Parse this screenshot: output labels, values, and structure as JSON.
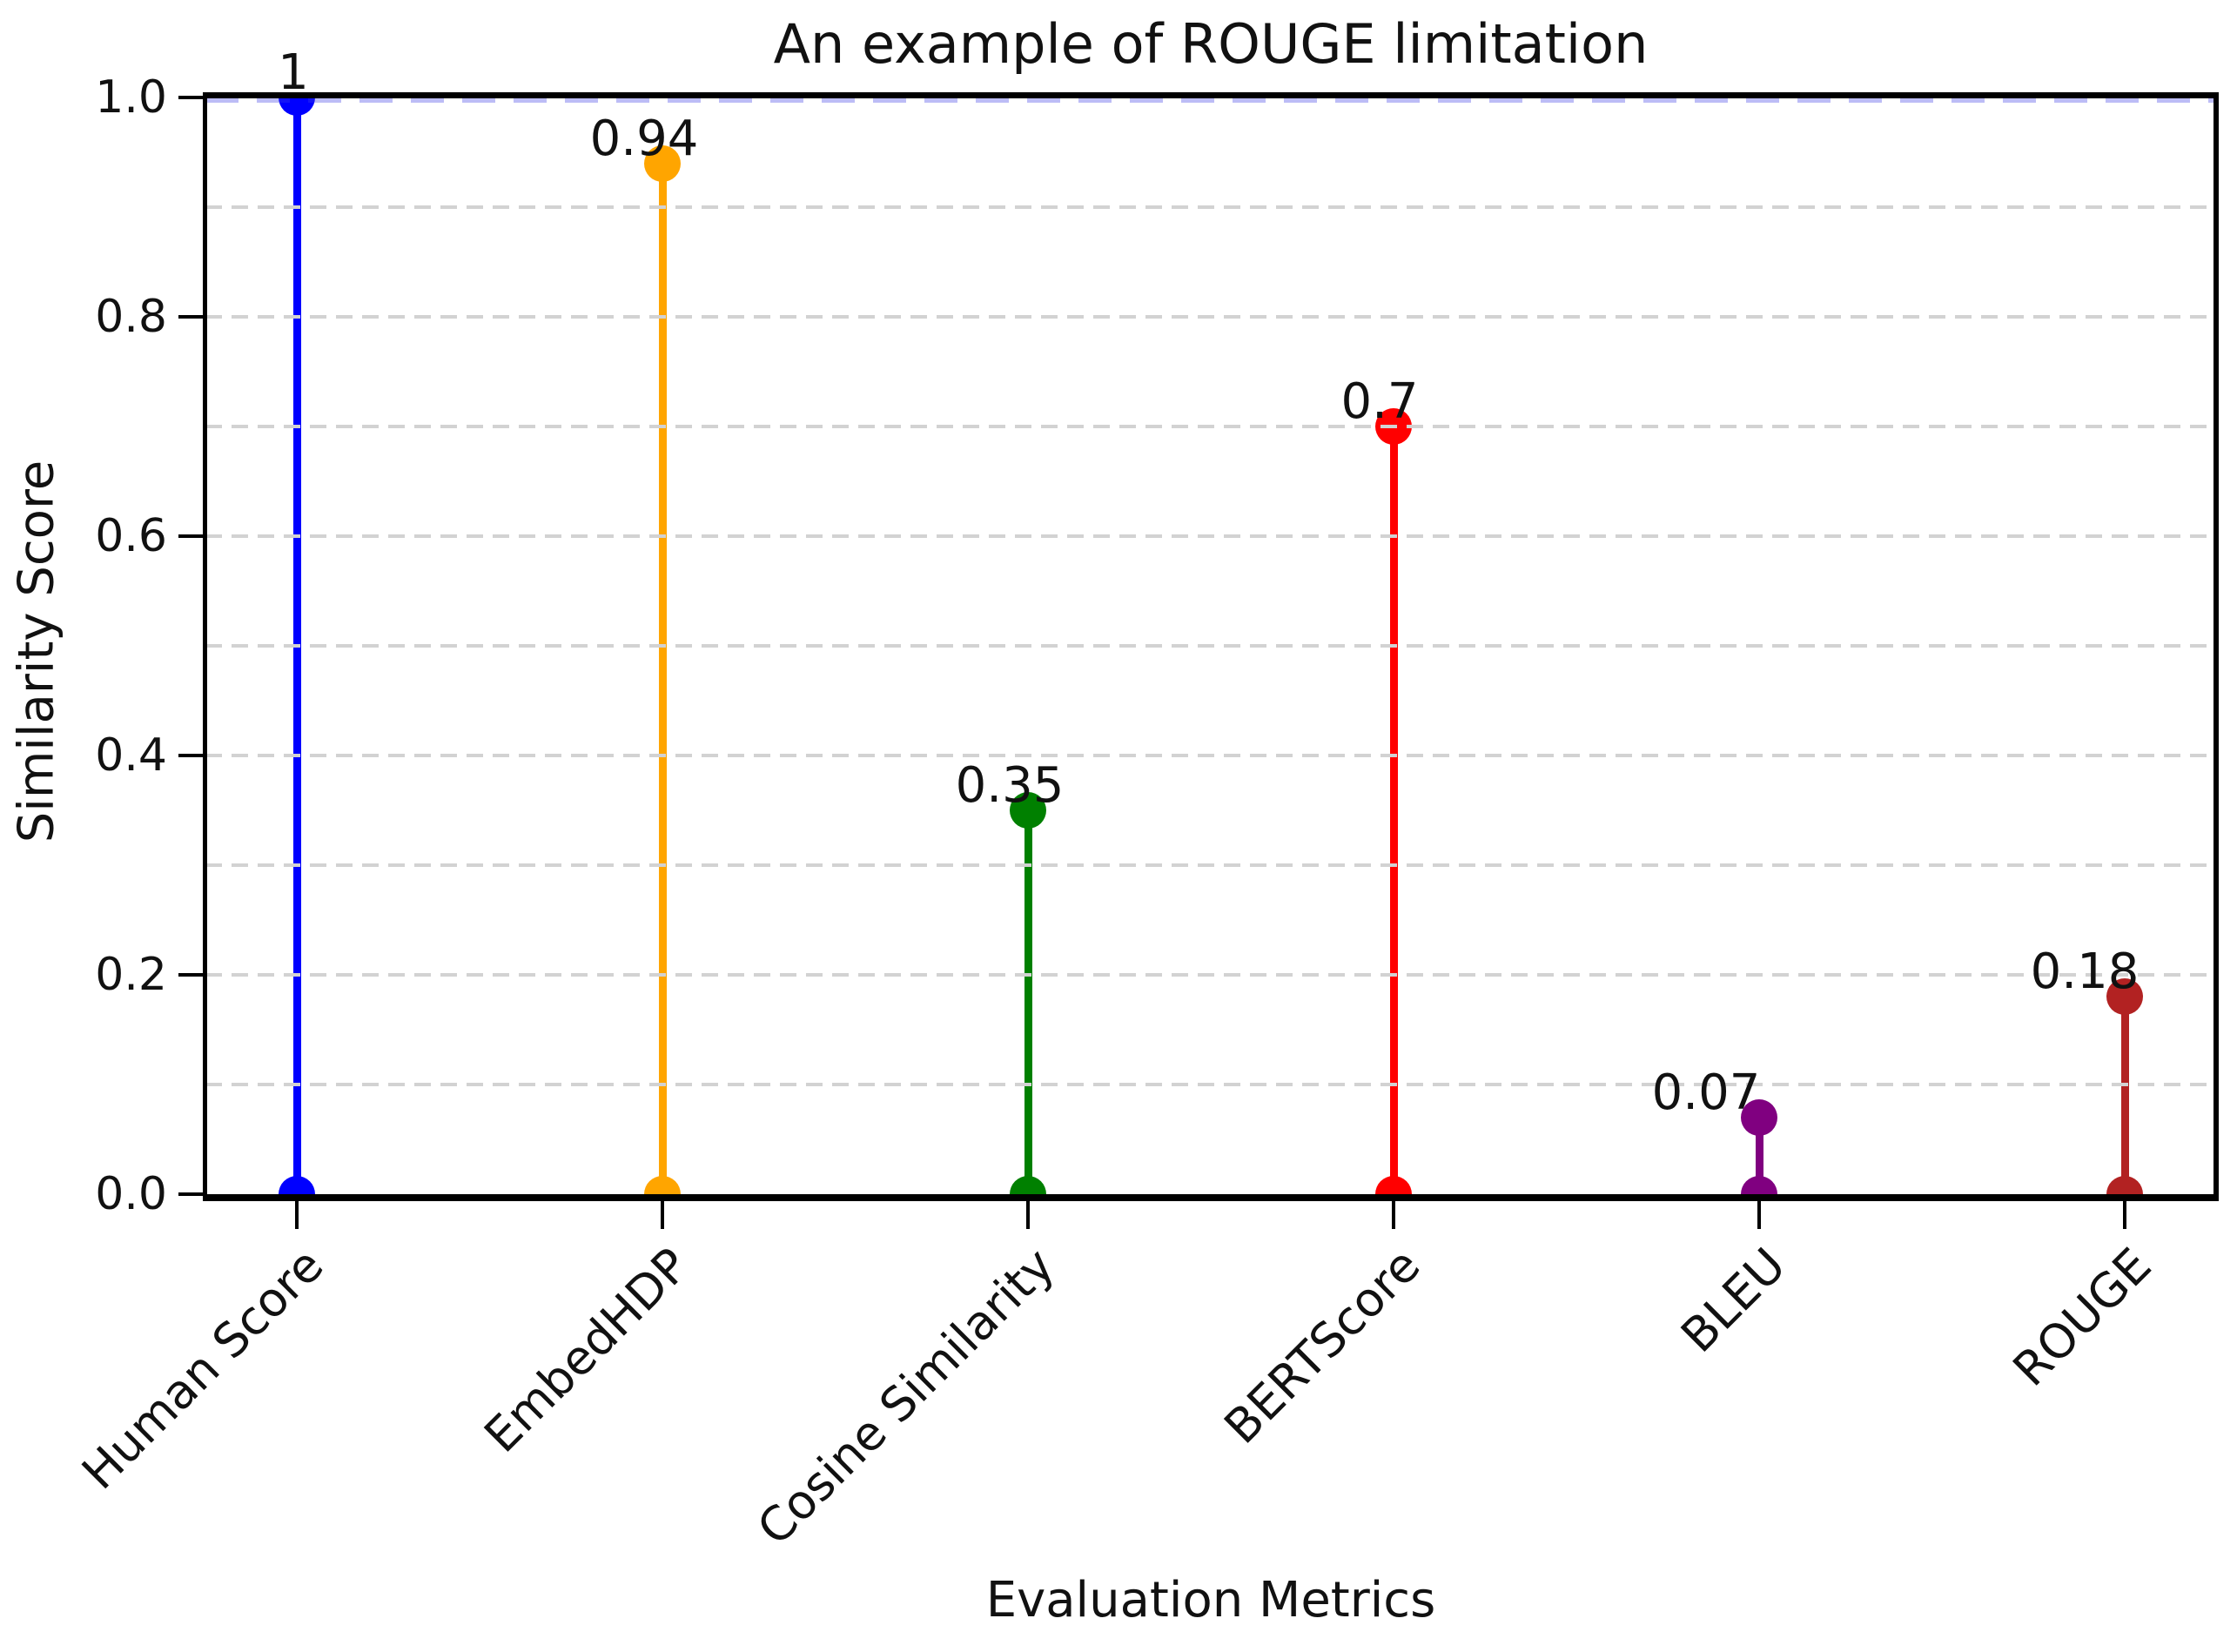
{
  "title": "An example of ROUGE limitation",
  "axes": {
    "x_label": "Evaluation Metrics",
    "y_label": "Similarity Score",
    "y_tick_labels": [
      "1.0",
      "0.8",
      "0.6",
      "0.4",
      "0.2",
      "0.0"
    ],
    "y_tick_values": [
      1.0,
      0.8,
      0.6,
      0.4,
      0.2,
      0.0
    ]
  },
  "chart_data": {
    "type": "stem",
    "title": "An example of ROUGE limitation",
    "xlabel": "Evaluation Metrics",
    "ylabel": "Similarity Score",
    "categories": [
      "Human Score",
      "EmbedHDP",
      "Cosine Similarity",
      "BERTScore",
      "BLEU",
      "ROUGE"
    ],
    "values": [
      1,
      0.94,
      0.35,
      0.7,
      0.07,
      0.18
    ],
    "value_labels": [
      "1",
      "0.94",
      "0.35",
      "0.7",
      "0.07",
      "0.18"
    ],
    "colors": [
      "#0000ff",
      "#ffa500",
      "#008000",
      "#ff0000",
      "#800080",
      "#b22222"
    ],
    "ylim": [
      0.0,
      1.0
    ],
    "grid": {
      "horizontal": true,
      "interval": 0.1,
      "style": "dashed",
      "color": "#d2d2d2"
    },
    "reference_line": {
      "y": 1.0,
      "style": "dashed",
      "color": "rgba(60,60,230,0.34)"
    },
    "x_tick_rotation_deg": 45,
    "legend": "none",
    "marker": "circle",
    "baseline_markers": true
  }
}
